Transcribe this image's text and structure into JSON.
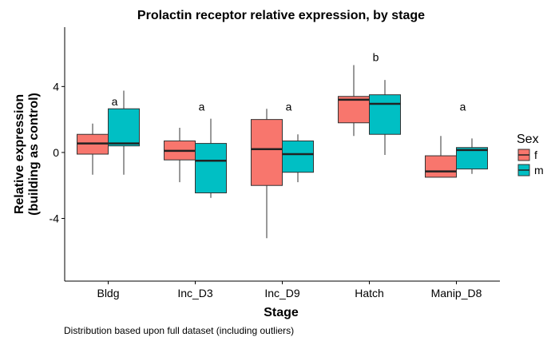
{
  "chart_data": {
    "type": "boxplot",
    "title": "Prolactin receptor relative expression, by stage",
    "xlabel": "Stage",
    "ylabel_line1": "Relative expression",
    "ylabel_line2": "(building as control)",
    "caption": "Distribution based upon full dataset (including outliers)",
    "ylim": [
      -7.8,
      7.6
    ],
    "yticks": [
      -4,
      0,
      4
    ],
    "ytick_labels": [
      "-4",
      "0",
      "4"
    ],
    "grid": false,
    "legend_position": "right",
    "legend_title": "Sex",
    "categories": [
      "Bldg",
      "Inc_D3",
      "Inc_D9",
      "Hatch",
      "Manip_D8"
    ],
    "series": [
      {
        "name": "f",
        "color": "#f8766d",
        "boxes": [
          {
            "min": -1.35,
            "q1": -0.1,
            "median": 0.55,
            "q3": 1.1,
            "max": 1.75
          },
          {
            "min": -1.8,
            "q1": -0.45,
            "median": 0.1,
            "q3": 0.7,
            "max": 1.5
          },
          {
            "min": -5.2,
            "q1": -2.0,
            "median": 0.2,
            "q3": 2.0,
            "max": 2.65
          },
          {
            "min": 1.0,
            "q1": 1.8,
            "median": 3.2,
            "q3": 3.4,
            "max": 5.3
          },
          {
            "min": -1.5,
            "q1": -1.5,
            "median": -1.15,
            "q3": -0.2,
            "max": 1.0
          }
        ]
      },
      {
        "name": "m",
        "color": "#00bfc4",
        "boxes": [
          {
            "min": -1.35,
            "q1": 0.4,
            "median": 0.55,
            "q3": 2.65,
            "max": 3.75
          },
          {
            "min": -2.75,
            "q1": -2.45,
            "median": -0.5,
            "q3": 0.55,
            "max": 2.05
          },
          {
            "min": -1.8,
            "q1": -1.2,
            "median": -0.1,
            "q3": 0.7,
            "max": 1.1
          },
          {
            "min": -0.15,
            "q1": 1.1,
            "median": 2.95,
            "q3": 3.5,
            "max": 4.4
          },
          {
            "min": -1.3,
            "q1": -1.0,
            "median": 0.15,
            "q3": 0.3,
            "max": 0.85
          }
        ]
      }
    ],
    "annotations": [
      {
        "category": "Bldg",
        "text": "a",
        "y": 2.85
      },
      {
        "category": "Inc_D3",
        "text": "a",
        "y": 2.55
      },
      {
        "category": "Inc_D9",
        "text": "a",
        "y": 2.55
      },
      {
        "category": "Hatch",
        "text": "b",
        "y": 5.55
      },
      {
        "category": "Manip_D8",
        "text": "a",
        "y": 2.55
      }
    ]
  }
}
